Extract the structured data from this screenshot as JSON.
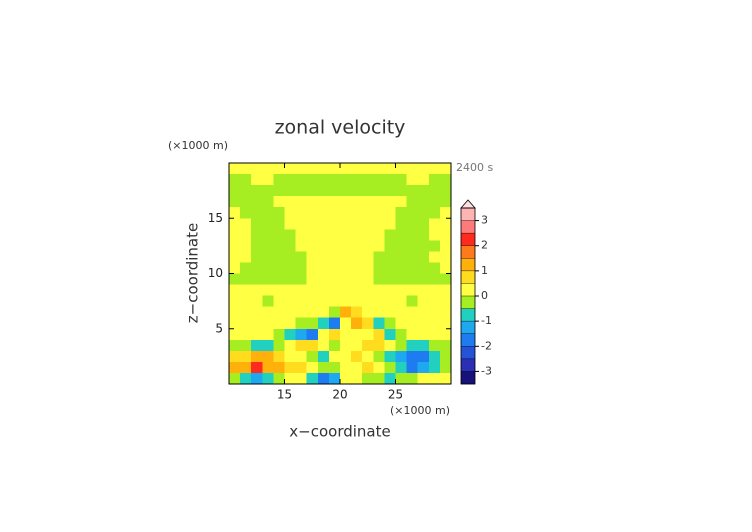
{
  "chart_data": {
    "type": "contour",
    "title": "zonal velocity",
    "x_label": "x−coordinate",
    "y_label": "z−coordinate",
    "x_unit": "(×1000 m)",
    "y_unit": "(×1000 m)",
    "time_label": "2400 s",
    "xlim": [
      10,
      30
    ],
    "ylim": [
      0,
      20
    ],
    "xticks": [
      15,
      20,
      25
    ],
    "yticks": [
      5,
      10,
      15
    ],
    "x": [
      10.5,
      11.5,
      12.5,
      13.5,
      14.5,
      15.5,
      16.5,
      17.5,
      18.5,
      19.5,
      20.5,
      21.5,
      22.5,
      23.5,
      24.5,
      25.5,
      26.5,
      27.5,
      28.5,
      29.5
    ],
    "y": [
      19.5,
      18.5,
      17.5,
      16.5,
      15.5,
      14.5,
      13.5,
      12.5,
      11.5,
      10.5,
      9.5,
      8.5,
      7.5,
      6.5,
      5.5,
      4.5,
      3.5,
      2.5,
      1.5,
      0.5
    ],
    "z": [
      [
        0.2,
        0.2,
        0.2,
        0.2,
        0.2,
        0.2,
        0.2,
        0.2,
        0.2,
        0.2,
        0.2,
        0.2,
        0.2,
        0.2,
        0.2,
        0.2,
        0.2,
        0.2,
        0.2,
        0.2
      ],
      [
        -0.2,
        -0.2,
        0.2,
        0.2,
        -0.2,
        -0.2,
        -0.2,
        -0.2,
        -0.2,
        -0.2,
        -0.2,
        -0.2,
        -0.2,
        -0.2,
        -0.2,
        -0.2,
        0.2,
        0.2,
        -0.2,
        -0.2
      ],
      [
        -0.2,
        -0.2,
        -0.2,
        -0.2,
        -0.2,
        -0.2,
        -0.2,
        -0.2,
        -0.2,
        -0.2,
        -0.2,
        -0.2,
        -0.2,
        -0.2,
        -0.2,
        -0.2,
        -0.2,
        -0.2,
        -0.2,
        -0.2
      ],
      [
        -0.2,
        -0.2,
        -0.2,
        -0.2,
        0.2,
        0.2,
        0.2,
        0.2,
        0.2,
        0.2,
        0.2,
        0.2,
        0.2,
        0.2,
        0.2,
        0.2,
        -0.2,
        -0.2,
        -0.2,
        -0.2
      ],
      [
        0.2,
        -0.2,
        -0.2,
        -0.2,
        -0.2,
        0.2,
        0.2,
        0.2,
        0.2,
        0.2,
        0.2,
        0.2,
        0.2,
        0.2,
        0.2,
        -0.2,
        -0.2,
        -0.2,
        -0.2,
        0.2
      ],
      [
        0.2,
        0.2,
        -0.2,
        -0.2,
        -0.2,
        0.2,
        0.2,
        0.2,
        0.2,
        0.2,
        0.2,
        0.2,
        0.2,
        0.2,
        0.2,
        -0.2,
        -0.2,
        -0.2,
        0.2,
        0.2
      ],
      [
        0.2,
        0.2,
        -0.2,
        -0.2,
        -0.2,
        -0.2,
        0.2,
        0.2,
        0.2,
        0.2,
        0.2,
        0.2,
        0.2,
        0.2,
        -0.2,
        -0.2,
        -0.2,
        -0.2,
        0.2,
        0.2
      ],
      [
        0.2,
        0.2,
        -0.2,
        -0.2,
        -0.2,
        -0.2,
        0.2,
        0.2,
        0.2,
        0.2,
        0.2,
        0.2,
        0.2,
        0.2,
        -0.2,
        -0.2,
        -0.2,
        -0.2,
        -0.2,
        0.2
      ],
      [
        0.2,
        0.2,
        -0.2,
        -0.2,
        -0.2,
        -0.2,
        -0.2,
        0.2,
        0.2,
        0.2,
        0.2,
        0.2,
        0.2,
        -0.2,
        -0.2,
        -0.2,
        -0.2,
        -0.2,
        0.2,
        0.2
      ],
      [
        0.2,
        -0.2,
        -0.2,
        -0.2,
        -0.2,
        -0.2,
        -0.2,
        0.2,
        0.2,
        0.2,
        0.2,
        0.2,
        0.2,
        -0.2,
        -0.2,
        -0.2,
        -0.2,
        -0.2,
        -0.2,
        0.2
      ],
      [
        -0.2,
        -0.2,
        -0.2,
        -0.2,
        -0.2,
        -0.2,
        -0.2,
        0.2,
        0.2,
        0.2,
        0.2,
        0.2,
        0.2,
        -0.2,
        -0.2,
        -0.2,
        -0.2,
        -0.2,
        -0.2,
        -0.2
      ],
      [
        0.2,
        0.2,
        0.2,
        0.2,
        0.2,
        0.2,
        0.2,
        0.2,
        0.2,
        0.2,
        0.2,
        0.2,
        0.2,
        0.2,
        0.2,
        0.2,
        0.2,
        0.2,
        0.2,
        0.2
      ],
      [
        0.2,
        0.2,
        0.2,
        -0.2,
        0.2,
        0.2,
        0.2,
        0.2,
        0.2,
        0.2,
        0.2,
        0.2,
        0.2,
        0.2,
        0.2,
        0.2,
        -0.2,
        0.2,
        0.2,
        0.2
      ],
      [
        0.2,
        0.2,
        0.2,
        0.2,
        0.2,
        0.2,
        0.2,
        0.2,
        0.2,
        -0.2,
        1.2,
        0.7,
        0.2,
        0.2,
        0.2,
        0.2,
        0.2,
        0.2,
        0.2,
        0.2
      ],
      [
        0.2,
        0.2,
        0.2,
        0.2,
        0.2,
        0.2,
        -0.2,
        -0.2,
        -0.7,
        -1.7,
        0.2,
        1.2,
        0.7,
        -0.7,
        -0.2,
        0.2,
        0.2,
        0.2,
        0.2,
        0.2
      ],
      [
        0.2,
        0.2,
        0.2,
        0.2,
        -0.2,
        -0.7,
        -1.2,
        -1.7,
        0.2,
        0.7,
        0.2,
        0.2,
        0.2,
        0.7,
        -0.7,
        -0.2,
        0.2,
        0.2,
        0.2,
        0.2
      ],
      [
        -0.2,
        -0.2,
        -0.7,
        -0.7,
        -0.2,
        0.2,
        0.7,
        0.7,
        0.2,
        -0.2,
        0.2,
        0.2,
        0.7,
        0.7,
        0.2,
        -0.2,
        -0.7,
        -0.7,
        -0.2,
        -0.2
      ],
      [
        0.7,
        0.7,
        1.2,
        1.2,
        0.7,
        0.2,
        0.2,
        -0.2,
        -0.7,
        0.2,
        0.2,
        0.7,
        0.2,
        -0.2,
        -0.7,
        -1.2,
        -1.7,
        -1.7,
        -0.7,
        -0.2
      ],
      [
        1.2,
        1.2,
        2.2,
        1.2,
        1.2,
        0.7,
        0.7,
        0.2,
        -0.2,
        -0.2,
        0.2,
        0.2,
        0.7,
        0.2,
        -0.2,
        -0.7,
        -1.7,
        -1.2,
        -0.7,
        -0.2
      ],
      [
        -0.2,
        -0.7,
        -1.2,
        -0.7,
        -0.2,
        0.2,
        0.2,
        -0.7,
        -1.7,
        -1.2,
        0.2,
        0.2,
        -0.2,
        -0.2,
        -0.7,
        -0.2,
        -0.2,
        0.2,
        0.2,
        0.2
      ]
    ],
    "levels": [
      -3.5,
      -3,
      -2.5,
      -2,
      -1.5,
      -1,
      -0.5,
      0,
      0.5,
      1,
      1.5,
      2,
      2.5,
      3,
      3.5
    ],
    "colors": [
      "#15127a",
      "#2a2fb5",
      "#2553d8",
      "#1f7cf0",
      "#1ea8f0",
      "#22d0c0",
      "#a6ee22",
      "#ffff44",
      "#ffdc1e",
      "#ffb00a",
      "#ff7a1a",
      "#ff2a1e",
      "#ff7a7a",
      "#ffb4b4"
    ],
    "extend_color": "#ffe0e0",
    "colorbar_ticks": [
      -3,
      -2,
      -1,
      0,
      1,
      2,
      3
    ]
  }
}
